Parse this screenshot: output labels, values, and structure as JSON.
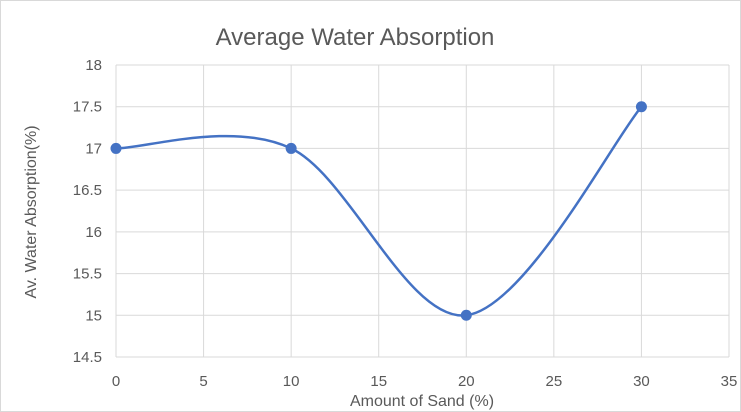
{
  "chart_data": {
    "type": "scatter",
    "title": "Average Water Absorption",
    "xlabel": "Amount of Sand (%)",
    "ylabel": "Av. Water Absorption(%)",
    "xlim": [
      0,
      35
    ],
    "ylim": [
      14.5,
      18
    ],
    "xticks": [
      "0",
      "5",
      "10",
      "15",
      "20",
      "25",
      "30",
      "35"
    ],
    "yticks": [
      "14.5",
      "15",
      "15.5",
      "16",
      "16.5",
      "17",
      "17.5",
      "18"
    ],
    "grid": true,
    "legend": "none",
    "line_style": "smooth",
    "color": "#4472c4",
    "series": [
      {
        "x": [
          0,
          10,
          20,
          30
        ],
        "values": [
          17,
          17,
          15,
          17.5
        ]
      }
    ]
  }
}
